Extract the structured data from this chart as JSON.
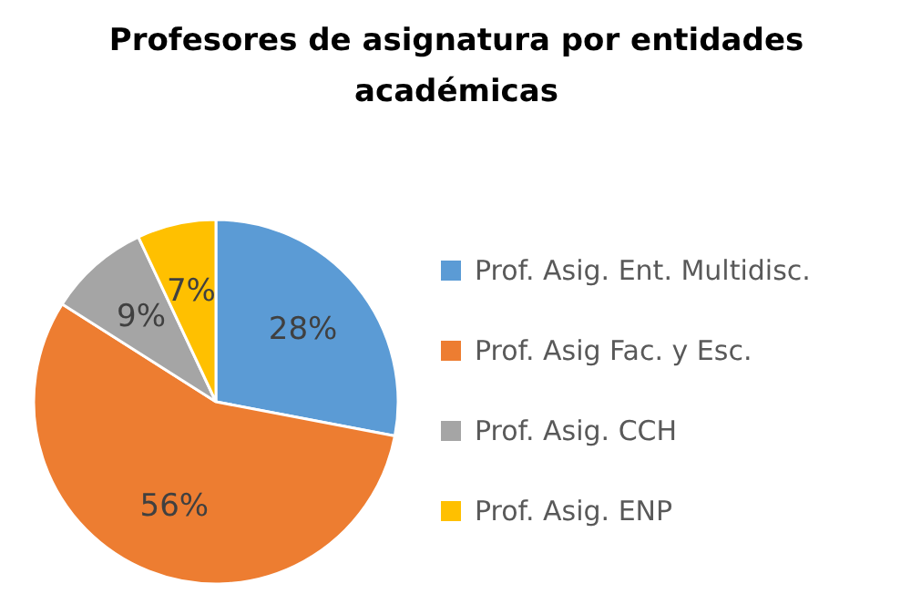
{
  "chart_data": {
    "type": "pie",
    "title": "Profesores de asignatura por entidades académicas",
    "categories": [
      "Prof. Asig. Ent. Multidisc.",
      "Prof. Asig Fac. y Esc.",
      "Prof. Asig. CCH",
      "Prof. Asig. ENP"
    ],
    "values": [
      28,
      56,
      9,
      7
    ],
    "colors": [
      "#5b9bd5",
      "#ed7d31",
      "#a5a5a5",
      "#ffc000"
    ],
    "value_labels": [
      "28%",
      "56%",
      "9%",
      "7%"
    ],
    "legend": "right"
  }
}
